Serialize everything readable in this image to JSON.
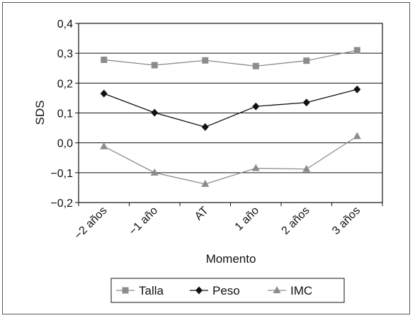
{
  "chart_data": {
    "type": "line",
    "categories": [
      "−2 años",
      "−1 año",
      "AT",
      "1 año",
      "2 años",
      "3 años"
    ],
    "xlabel": "Momento",
    "ylabel": "SDS",
    "ylim": [
      -0.2,
      0.4
    ],
    "yticks": [
      0.4,
      0.3,
      0.2,
      0.1,
      0.0,
      -0.1,
      -0.2
    ],
    "ytick_labels": [
      "0,4",
      "0,3",
      "0,2",
      "0,1",
      "0,0",
      "−0,1",
      "−0,2"
    ],
    "grid": "horizontal",
    "legend_position": "bottom",
    "series": [
      {
        "name": "Talla",
        "marker": "square",
        "color": "#8c8c8c",
        "values": [
          0.278,
          0.26,
          0.276,
          0.257,
          0.275,
          0.31
        ]
      },
      {
        "name": "Peso",
        "marker": "diamond",
        "color": "#111111",
        "values": [
          0.165,
          0.101,
          0.053,
          0.122,
          0.135,
          0.179
        ]
      },
      {
        "name": "IMC",
        "marker": "triangle",
        "color": "#8c8c8c",
        "values": [
          -0.012,
          -0.1,
          -0.138,
          -0.085,
          -0.088,
          0.022
        ]
      }
    ]
  }
}
